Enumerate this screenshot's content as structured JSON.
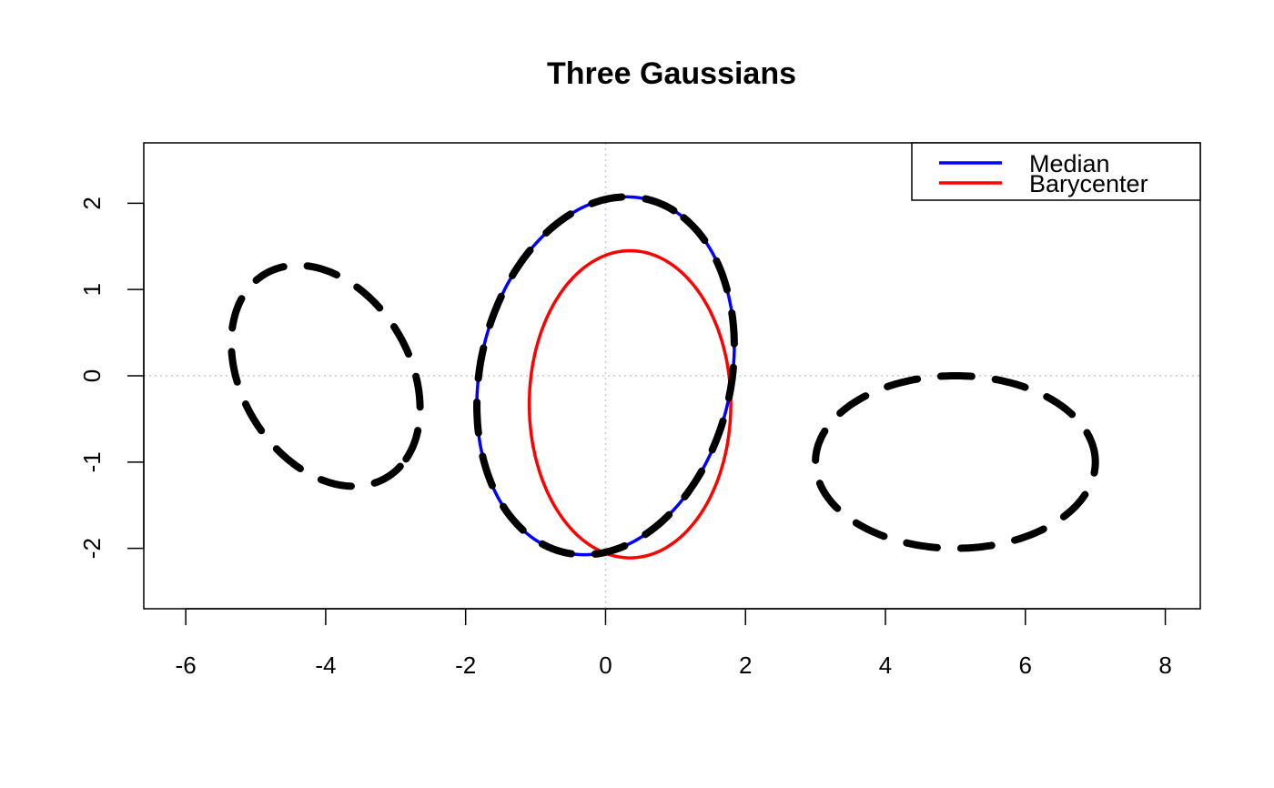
{
  "chart_data": {
    "type": "line",
    "title": "Three Gaussians",
    "xlabel": "",
    "ylabel": "",
    "xlim": [
      -6.6,
      8.5
    ],
    "ylim": [
      -2.7,
      2.7
    ],
    "x_ticks": [
      -6,
      -4,
      -2,
      0,
      2,
      4,
      6,
      8
    ],
    "y_ticks": [
      -2,
      -1,
      0,
      1,
      2
    ],
    "reference_lines": {
      "x": 0,
      "y": 0,
      "style": "dotted",
      "color": "#c8c8c8"
    },
    "legend": {
      "position": "top-right",
      "entries": [
        {
          "label": "Median",
          "color": "#0000ff"
        },
        {
          "label": "Barycenter",
          "color": "#ff0000"
        }
      ]
    },
    "ellipses": [
      {
        "role": "input",
        "center": [
          -4,
          0
        ],
        "a": 1.5,
        "b": 1.1,
        "angle_deg": -40,
        "color": "#000000",
        "style": "dashed"
      },
      {
        "role": "input",
        "center": [
          0,
          0
        ],
        "a": 2.15,
        "b": 1.75,
        "angle_deg": 63,
        "color": "#000000",
        "style": "dashed"
      },
      {
        "role": "input",
        "center": [
          5,
          -1
        ],
        "a": 2.0,
        "b": 1.0,
        "angle_deg": 0,
        "color": "#000000",
        "style": "dashed"
      },
      {
        "role": "Median",
        "center": [
          0,
          0
        ],
        "a": 2.15,
        "b": 1.75,
        "angle_deg": 63,
        "color": "#0000ff",
        "style": "solid"
      },
      {
        "role": "Barycenter",
        "center": [
          0.35,
          -0.33
        ],
        "a": 1.44,
        "b": 1.78,
        "angle_deg": 0,
        "color": "#ff0000",
        "style": "solid"
      }
    ]
  }
}
